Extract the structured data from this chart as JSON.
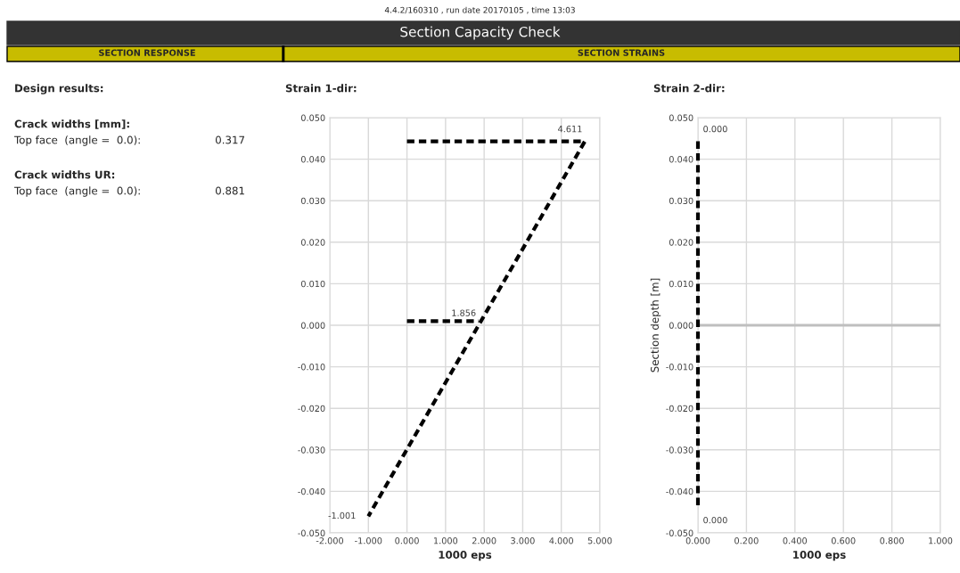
{
  "chart_data": [
    {
      "type": "other",
      "title": "Section Capacity Check",
      "subtitle": "4.4.2/160310 , run date 20170105 , time 13:03",
      "annotations": [
        "SECTION RESPONSE",
        "SECTION STRAINS",
        "Design results:",
        "Crack widths [mm]:",
        "Top face  (angle =  0.0):",
        "0.317",
        "Crack widths UR:",
        "Top face  (angle =  0.0):",
        "0.881"
      ]
    },
    {
      "type": "line",
      "title": "Strain 1-dir:",
      "xlabel": "1000 eps",
      "series": [
        {
          "color": "#000000",
          "x": [
            0.0,
            4.611,
            4.611,
            1.856,
            -1.001
          ],
          "values": [
            0.0443,
            0.0443,
            0.0443,
            0.0,
            -0.046
          ]
        },
        {
          "color": "#000000",
          "x": [
            0.0,
            1.856
          ],
          "values": [
            0.001,
            0.001
          ]
        }
      ],
      "line_style": "dashed",
      "marker": "none",
      "grid": true,
      "annotations": [
        {
          "text": "4.611",
          "x": 4.611,
          "y": 0.0443
        },
        {
          "text": "1.856",
          "x": 1.856,
          "y": 0.0
        },
        {
          "text": "-1.001",
          "x": -1.001,
          "y": -0.046
        }
      ],
      "xlim": [
        -2,
        5
      ],
      "ylim": [
        -0.05,
        0.05
      ],
      "xticks": [
        {
          "value": -2,
          "label": "-2.000"
        },
        {
          "value": -1,
          "label": "-1.000"
        },
        {
          "value": 0,
          "label": "0.000"
        },
        {
          "value": 1,
          "label": "1.000"
        },
        {
          "value": 2,
          "label": "2.000"
        },
        {
          "value": 3,
          "label": "3.000"
        },
        {
          "value": 4,
          "label": "4.000"
        },
        {
          "value": 5,
          "label": "5.000"
        }
      ],
      "yticks": [
        {
          "value": -0.05,
          "label": "-0.050"
        },
        {
          "value": -0.04,
          "label": "-0.040"
        },
        {
          "value": -0.03,
          "label": "-0.030"
        },
        {
          "value": -0.02,
          "label": "-0.020"
        },
        {
          "value": -0.01,
          "label": "-0.010"
        },
        {
          "value": 0,
          "label": "0.000"
        },
        {
          "value": 0.01,
          "label": "0.010"
        },
        {
          "value": 0.02,
          "label": "0.020"
        },
        {
          "value": 0.03,
          "label": "0.030"
        },
        {
          "value": 0.04,
          "label": "0.040"
        },
        {
          "value": 0.05,
          "label": "0.050"
        }
      ]
    },
    {
      "type": "line",
      "title": "Strain 2-dir:",
      "xlabel": "1000 eps",
      "ylabel": "Section depth [m]",
      "series": [
        {
          "color": "#000000",
          "x": [
            0.0,
            0.0,
            0.0
          ],
          "values": [
            0.0443,
            0.0,
            -0.0443
          ]
        }
      ],
      "line_style": "dashed",
      "marker": "none",
      "grid": true,
      "ref_lines": [
        {
          "axis": "y",
          "value": 0,
          "color": "#bfbfbf"
        }
      ],
      "annotations": [
        {
          "text": "0.000",
          "x": 0.0,
          "y": 0.0443
        },
        {
          "text": "0.000",
          "x": 0.0,
          "y": -0.0443
        }
      ],
      "xlim": [
        0,
        1
      ],
      "ylim": [
        -0.05,
        0.05
      ],
      "xticks": [
        {
          "value": 0,
          "label": "0.000"
        },
        {
          "value": 0.2,
          "label": "0.200"
        },
        {
          "value": 0.4,
          "label": "0.400"
        },
        {
          "value": 0.6,
          "label": "0.600"
        },
        {
          "value": 0.8,
          "label": "0.800"
        },
        {
          "value": 1,
          "label": "1.000"
        }
      ],
      "yticks": [
        {
          "value": -0.05,
          "label": "-0.050"
        },
        {
          "value": -0.04,
          "label": "-0.040"
        },
        {
          "value": -0.03,
          "label": "-0.030"
        },
        {
          "value": -0.02,
          "label": "-0.020"
        },
        {
          "value": -0.01,
          "label": "-0.010"
        },
        {
          "value": 0,
          "label": "0.000"
        },
        {
          "value": 0.01,
          "label": "0.010"
        },
        {
          "value": 0.02,
          "label": "0.020"
        },
        {
          "value": 0.03,
          "label": "0.030"
        },
        {
          "value": 0.04,
          "label": "0.040"
        },
        {
          "value": 0.05,
          "label": "0.050"
        }
      ]
    }
  ]
}
